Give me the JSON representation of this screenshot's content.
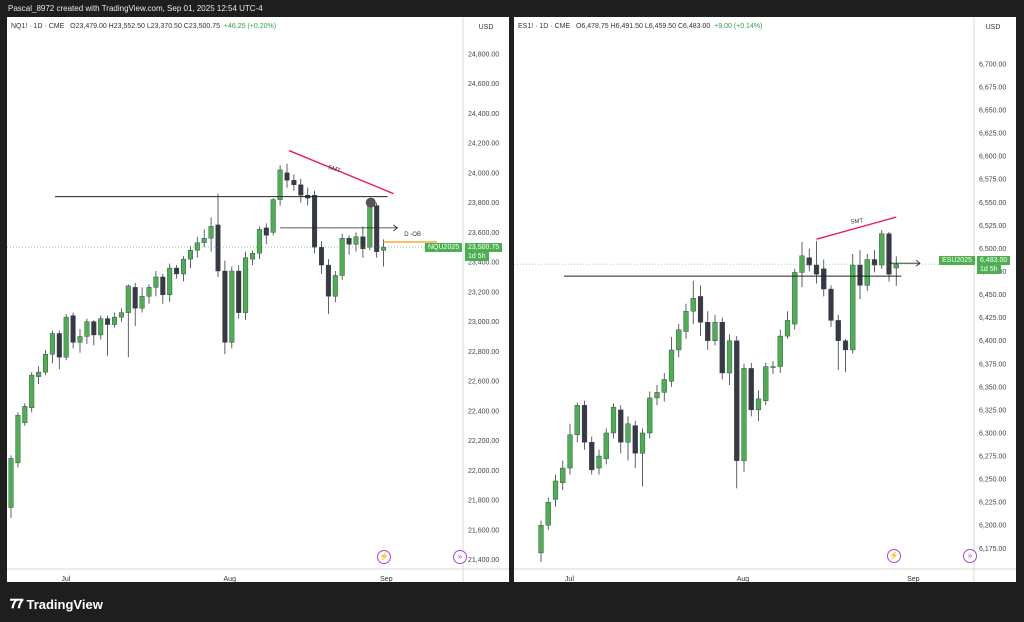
{
  "header": {
    "credit": "Pascal_8972 created with TradingView.com, Sep 01, 2025 12:54 UTC-4"
  },
  "footer": {
    "brand": "TradingView",
    "logo_icon": "tradingview-logo-icon"
  },
  "colors": {
    "up": "#4caf50",
    "down": "#363a45",
    "smt": "#e91e63",
    "level": "#f39c12",
    "line": "#222222",
    "price_tag": "#4caf50"
  },
  "panels": [
    {
      "legend": {
        "symbol": "NQ1! · 1D · CME",
        "ohlc": "O23,479.00  H23,552.50  L23,370.50  C23,500.75",
        "change": "+46.25 (+0.20%)"
      },
      "currency": "USD",
      "price_tag": {
        "symbol": "NQU2025",
        "price": "23,500.75",
        "countdown": "1d 5h"
      },
      "annotations": {
        "smt": "SMT",
        "ob": "D -OB"
      },
      "badge_icon": "lightning-icon",
      "goto_icon": "goto-realtime-icon"
    },
    {
      "legend": {
        "symbol": "ES1! · 1D · CME",
        "ohlc": "O6,478.75  H6,491.50  L6,459.50  C6,483.00",
        "change": "+9.00 (+0.14%)"
      },
      "currency": "USD",
      "price_tag": {
        "symbol": "ESU2025",
        "price": "6,483.00",
        "countdown": "1d 5h"
      },
      "annotations": {
        "smt": "SMT"
      },
      "badge_icon": "lightning-icon",
      "goto_icon": "goto-realtime-icon"
    }
  ],
  "chart_data": [
    {
      "type": "candlestick",
      "title": "NQ1! · 1D · CME",
      "x_labels": [
        "Jul",
        "Aug",
        "Sep"
      ],
      "y_ticks": [
        "24,800.00",
        "24,600.00",
        "24,400.00",
        "24,200.00",
        "24,000.00",
        "23,800.00",
        "23,600.00",
        "23,400.00",
        "23,200.00",
        "23,000.00",
        "22,800.00",
        "22,600.00",
        "22,400.00",
        "22,200.00",
        "22,000.00",
        "21,800.00",
        "21,600.00",
        "21,400.00"
      ],
      "ylim": [
        21370,
        24900
      ],
      "candles": [
        [
          21750,
          22080,
          21680,
          22100
        ],
        [
          22050,
          22370,
          22020,
          22390
        ],
        [
          22320,
          22430,
          22300,
          22450
        ],
        [
          22420,
          22640,
          22390,
          22660
        ],
        [
          22630,
          22660,
          22580,
          22700
        ],
        [
          22660,
          22780,
          22640,
          22810
        ],
        [
          22780,
          22920,
          22720,
          22940
        ],
        [
          22920,
          22760,
          22680,
          22940
        ],
        [
          22760,
          23030,
          22740,
          23050
        ],
        [
          23040,
          22860,
          22820,
          23060
        ],
        [
          22860,
          22900,
          22790,
          22950
        ],
        [
          22900,
          23000,
          22850,
          23020
        ],
        [
          23000,
          22910,
          22840,
          23010
        ],
        [
          22910,
          23020,
          22880,
          23040
        ],
        [
          23020,
          22980,
          22770,
          23040
        ],
        [
          22980,
          23030,
          22960,
          23060
        ],
        [
          23030,
          23060,
          23000,
          23090
        ],
        [
          23060,
          23240,
          22760,
          23250
        ],
        [
          23230,
          23090,
          22970,
          23260
        ],
        [
          23090,
          23170,
          23060,
          23230
        ],
        [
          23170,
          23230,
          23120,
          23250
        ],
        [
          23230,
          23300,
          23170,
          23340
        ],
        [
          23300,
          23180,
          23120,
          23320
        ],
        [
          23180,
          23360,
          23130,
          23390
        ],
        [
          23360,
          23320,
          23290,
          23380
        ],
        [
          23320,
          23420,
          23270,
          23440
        ],
        [
          23420,
          23480,
          23360,
          23510
        ],
        [
          23480,
          23530,
          23430,
          23570
        ],
        [
          23530,
          23560,
          23500,
          23620
        ],
        [
          23560,
          23640,
          23470,
          23700
        ],
        [
          23650,
          23340,
          23300,
          23860
        ],
        [
          23340,
          22860,
          22780,
          23410
        ],
        [
          22860,
          23340,
          22820,
          23370
        ],
        [
          23340,
          23060,
          23020,
          23380
        ],
        [
          23060,
          23430,
          23010,
          23470
        ],
        [
          23420,
          23460,
          23380,
          23480
        ],
        [
          23460,
          23620,
          23420,
          23640
        ],
        [
          23630,
          23580,
          23520,
          23660
        ],
        [
          23600,
          23820,
          23580,
          23830
        ],
        [
          23820,
          24020,
          23780,
          24050
        ],
        [
          24000,
          23950,
          23900,
          24060
        ],
        [
          23950,
          23920,
          23880,
          23990
        ],
        [
          23920,
          23850,
          23800,
          23960
        ],
        [
          23850,
          23830,
          23780,
          23900
        ],
        [
          23850,
          23500,
          23460,
          23880
        ],
        [
          23500,
          23380,
          23320,
          23540
        ],
        [
          23380,
          23170,
          23050,
          23420
        ],
        [
          23170,
          23310,
          23130,
          23340
        ],
        [
          23310,
          23560,
          23280,
          23590
        ],
        [
          23560,
          23520,
          23450,
          23580
        ],
        [
          23520,
          23570,
          23470,
          23600
        ],
        [
          23570,
          23490,
          23430,
          23640
        ],
        [
          23500,
          23780,
          23480,
          23830
        ],
        [
          23780,
          23470,
          23430,
          23800
        ],
        [
          23479,
          23500.75,
          23370.5,
          23552.5
        ]
      ],
      "levels": {
        "line_high": 23840,
        "ob": 23630,
        "orange": 23535
      },
      "smt": {
        "from": 24150,
        "to": 23860
      }
    },
    {
      "type": "candlestick",
      "title": "ES1! · 1D · CME",
      "x_labels": [
        "Jul",
        "Aug",
        "Sep"
      ],
      "y_ticks": [
        "6,700.00",
        "6,675.00",
        "6,650.00",
        "6,625.00",
        "6,600.00",
        "6,575.00",
        "6,550.00",
        "6,525.00",
        "6,500.00",
        "6,475.00",
        "6,450.00",
        "6,425.00",
        "6,400.00",
        "6,375.00",
        "6,350.00",
        "6,325.00",
        "6,300.00",
        "6,275.00",
        "6,250.00",
        "6,225.00",
        "6,200.00",
        "6,175.00"
      ],
      "ylim": [
        6158,
        6727
      ],
      "candles": [
        [
          6170,
          6200,
          6160,
          6205
        ],
        [
          6200,
          6225,
          6195,
          6230
        ],
        [
          6228,
          6248,
          6220,
          6255
        ],
        [
          6246,
          6262,
          6238,
          6270
        ],
        [
          6262,
          6298,
          6255,
          6310
        ],
        [
          6298,
          6330,
          6290,
          6333
        ],
        [
          6330,
          6290,
          6282,
          6335
        ],
        [
          6290,
          6260,
          6255,
          6296
        ],
        [
          6262,
          6275,
          6255,
          6282
        ],
        [
          6272,
          6300,
          6266,
          6305
        ],
        [
          6300,
          6328,
          6294,
          6332
        ],
        [
          6325,
          6290,
          6278,
          6330
        ],
        [
          6290,
          6310,
          6270,
          6318
        ],
        [
          6308,
          6278,
          6262,
          6313
        ],
        [
          6278,
          6300,
          6242,
          6305
        ],
        [
          6300,
          6338,
          6294,
          6345
        ],
        [
          6338,
          6344,
          6330,
          6352
        ],
        [
          6344,
          6358,
          6334,
          6365
        ],
        [
          6356,
          6390,
          6350,
          6404
        ],
        [
          6390,
          6412,
          6382,
          6418
        ],
        [
          6410,
          6432,
          6402,
          6440
        ],
        [
          6432,
          6446,
          6418,
          6465
        ],
        [
          6448,
          6420,
          6405,
          6460
        ],
        [
          6420,
          6400,
          6390,
          6432
        ],
        [
          6400,
          6420,
          6395,
          6428
        ],
        [
          6420,
          6365,
          6358,
          6425
        ],
        [
          6365,
          6400,
          6352,
          6407
        ],
        [
          6400,
          6270,
          6240,
          6405
        ],
        [
          6270,
          6370,
          6258,
          6375
        ],
        [
          6370,
          6325,
          6318,
          6376
        ],
        [
          6325,
          6337,
          6313,
          6346
        ],
        [
          6335,
          6372,
          6330,
          6376
        ],
        [
          6372,
          6372,
          6364,
          6378
        ],
        [
          6372,
          6405,
          6365,
          6412
        ],
        [
          6405,
          6422,
          6402,
          6432
        ],
        [
          6418,
          6474,
          6412,
          6478
        ],
        [
          6474,
          6492,
          6458,
          6507
        ],
        [
          6490,
          6482,
          6475,
          6500
        ],
        [
          6482,
          6472,
          6462,
          6508
        ],
        [
          6478,
          6456,
          6448,
          6488
        ],
        [
          6456,
          6422,
          6415,
          6460
        ],
        [
          6422,
          6400,
          6368,
          6428
        ],
        [
          6400,
          6390,
          6366,
          6402
        ],
        [
          6390,
          6482,
          6386,
          6494
        ],
        [
          6482,
          6460,
          6445,
          6498
        ],
        [
          6460,
          6488,
          6454,
          6494
        ],
        [
          6488,
          6482,
          6474,
          6498
        ],
        [
          6482,
          6516,
          6478,
          6520
        ],
        [
          6516,
          6472,
          6464,
          6518
        ],
        [
          6478.75,
          6483,
          6459.5,
          6491.5
        ]
      ],
      "levels": {
        "line_low": 6470
      },
      "smt": {
        "from": 6510,
        "to": 6534
      }
    }
  ]
}
